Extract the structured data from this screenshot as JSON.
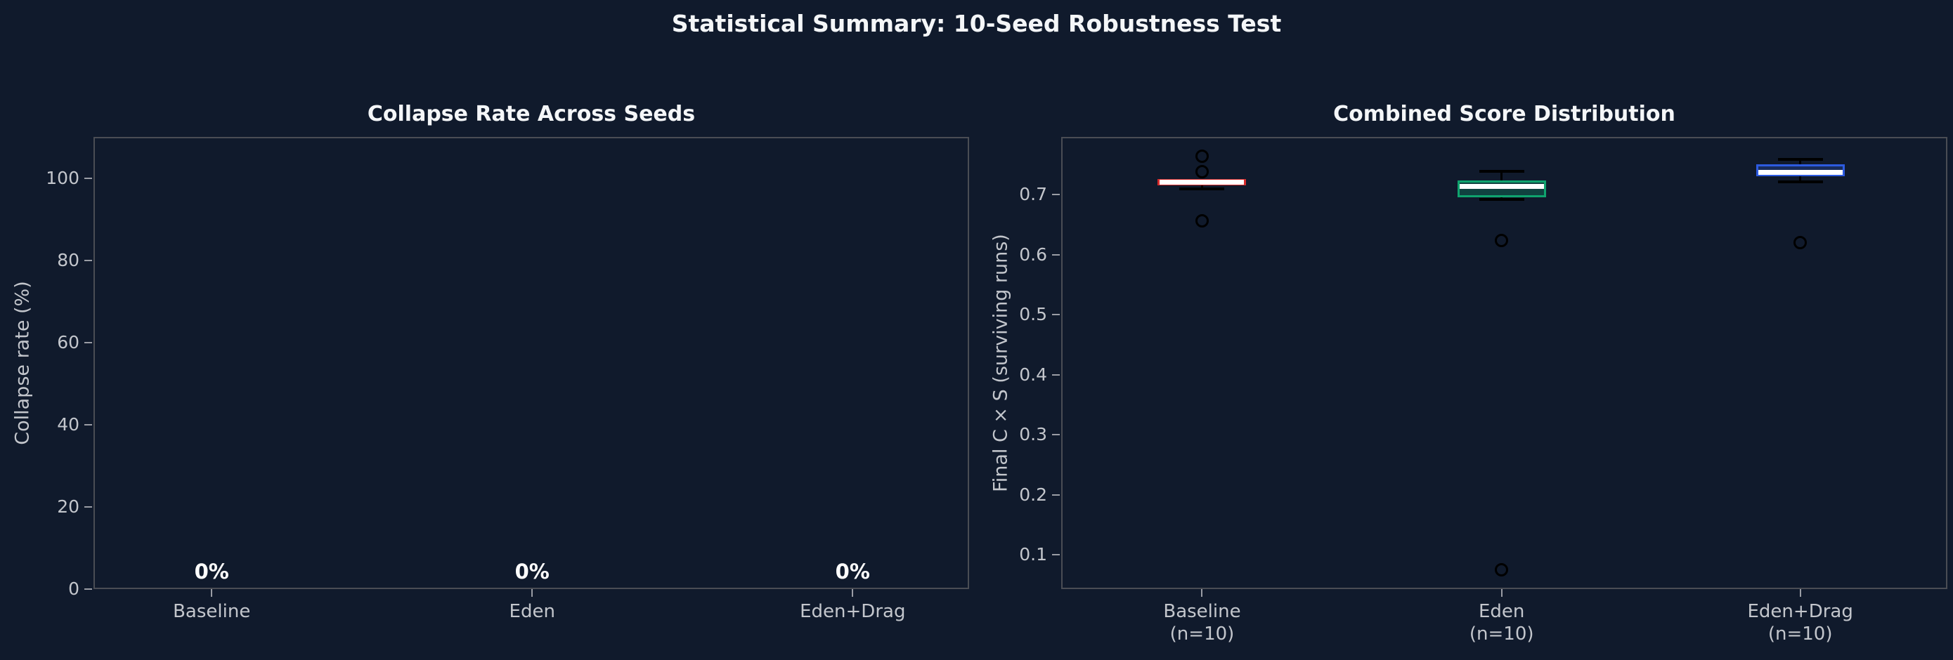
{
  "figure": {
    "title": "Statistical Summary: 10-Seed Robustness Test",
    "background_color": "#101a2c",
    "spine_color": "#4a4d54",
    "tick_label_color": "#c3c6cc",
    "title_color": "#f4f6f8"
  },
  "chart_data": [
    {
      "type": "bar",
      "title": "Collapse Rate Across Seeds",
      "ylabel": "Collapse rate (%)",
      "xlabel": "",
      "categories": [
        "Baseline",
        "Eden",
        "Eden+Drag"
      ],
      "values": [
        0,
        0,
        0
      ],
      "bar_labels": [
        "0%",
        "0%",
        "0%"
      ],
      "yticks": [
        0,
        20,
        40,
        60,
        80,
        100
      ],
      "ytick_labels": [
        "0",
        "20",
        "40",
        "60",
        "80",
        "100"
      ],
      "ylim": [
        0,
        110
      ],
      "grid": false,
      "legend": null
    },
    {
      "type": "boxplot",
      "title": "Combined Score Distribution",
      "ylabel": "Final C × S (surviving runs)",
      "xlabel": "",
      "categories": [
        [
          "Baseline",
          "(n=10)"
        ],
        [
          "Eden",
          "(n=10)"
        ],
        [
          "Eden+Drag",
          "(n=10)"
        ]
      ],
      "yticks": [
        0.1,
        0.2,
        0.3,
        0.4,
        0.5,
        0.6,
        0.7
      ],
      "ytick_labels": [
        "0.1",
        "0.2",
        "0.3",
        "0.4",
        "0.5",
        "0.6",
        "0.7"
      ],
      "ylim": [
        0.043,
        0.796
      ],
      "grid": false,
      "legend": null,
      "median_color": "#ffffff",
      "whisker_color": "#000000",
      "series": [
        {
          "name": "Baseline",
          "edge_color": "#d62b2b",
          "fill_color": "#41202b",
          "whislo": 0.71,
          "q1": 0.715,
          "med": 0.72,
          "q3": 0.726,
          "whishi": 0.726,
          "fliers": [
            0.764,
            0.738,
            0.656
          ]
        },
        {
          "name": "Eden",
          "edge_color": "#0fa36e",
          "fill_color": "#104240",
          "whislo": 0.692,
          "q1": 0.695,
          "med": 0.714,
          "q3": 0.724,
          "whishi": 0.739,
          "fliers": [
            0.623,
            0.075
          ]
        },
        {
          "name": "Eden+Drag",
          "edge_color": "#2d5be0",
          "fill_color": "#182c5c",
          "whislo": 0.721,
          "q1": 0.73,
          "med": 0.737,
          "q3": 0.75,
          "whishi": 0.758,
          "fliers": [
            0.62
          ]
        }
      ]
    }
  ]
}
